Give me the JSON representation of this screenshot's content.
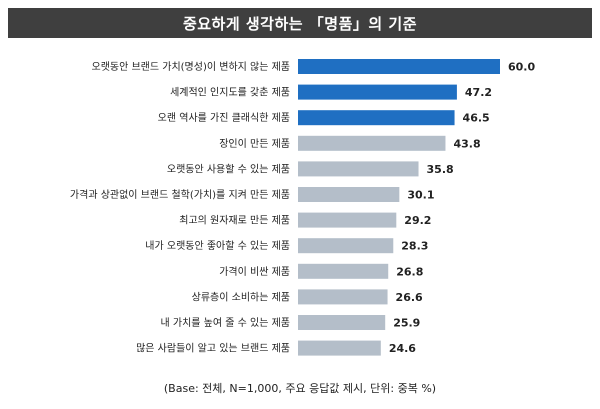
{
  "title": "중요하게 생각하는 「명품」의 기준",
  "footnote": "(Base: 전체, N=1,000, 주요 응답값 제시, 단위: 중복 %)",
  "colors": {
    "highlight": "#1f6fc2",
    "default": "#b4bec9",
    "title_bg": "#3f3f3f"
  },
  "chart_data": {
    "type": "bar",
    "orientation": "horizontal",
    "categories": [
      "오랫동안 브랜드 가치(명성)이 변하지 않는 제품",
      "세계적인 인지도를 갖춘 제품",
      "오랜 역사를 가진 클래식한 제품",
      "장인이 만든 제품",
      "오랫동안 사용할 수 있는 제품",
      "가격과 상관없이 브랜드 철학(가치)를 지켜 만든 제품",
      "최고의 원자재로 만든 제품",
      "내가 오랫동안 좋아할 수 있는 제품",
      "가격이 비싼 제품",
      "상류층이 소비하는 제품",
      "내 가치를 높여 줄 수 있는 제품",
      "많은 사람들이 알고 있는 브랜드 제품"
    ],
    "values": [
      60.0,
      47.2,
      46.5,
      43.8,
      35.8,
      30.1,
      29.2,
      28.3,
      26.8,
      26.6,
      25.9,
      24.6
    ],
    "value_labels": [
      "60.0",
      "47.2",
      "46.5",
      "43.8",
      "35.8",
      "30.1",
      "29.2",
      "28.3",
      "26.8",
      "26.6",
      "25.9",
      "24.6"
    ],
    "highlighted": [
      true,
      true,
      true,
      false,
      false,
      false,
      false,
      false,
      false,
      false,
      false,
      false
    ],
    "xlim": [
      0,
      60
    ]
  }
}
